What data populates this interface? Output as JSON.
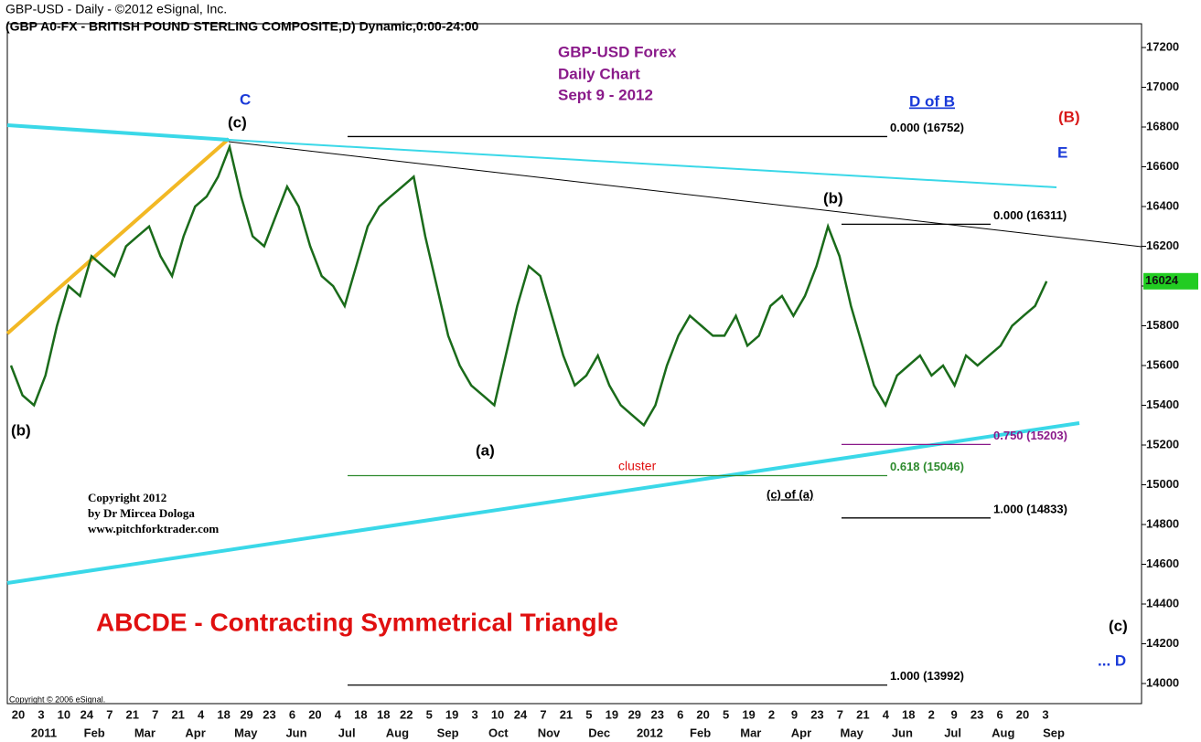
{
  "chart_data": {
    "type": "line",
    "header_line1": "GBP-USD -  Daily - ©2012 eSignal, Inc.",
    "header_line2": "(GBP A0-FX - BRITISH POUND STERLING COMPOSITE,D) Dynamic,0:00-24:00",
    "title_lines": [
      "GBP-USD Forex",
      "Daily Chart",
      "Sept 9 - 2012"
    ],
    "subtitle": "ABCDE -  Contracting Symmetrical Triangle",
    "copyright_lines": [
      "Copyright 2012",
      "by Dr Mircea Dologa",
      "www.pitchforktrader.com"
    ],
    "esignal_copyright": "Copyright © 2006 eSignal.",
    "wave_labels": [
      "C",
      "(c)",
      "(b)",
      "(a)",
      "(b)",
      "D of B",
      "(B)",
      "E",
      "(c) of (a)",
      "(c)",
      "... D"
    ],
    "annotation": "cluster",
    "levels": [
      {
        "label": "0.000 (16752)",
        "value": 16752,
        "color": "#000000"
      },
      {
        "label": "0.000 (16311)",
        "value": 16311,
        "color": "#000000"
      },
      {
        "label": "0.750 (15203)",
        "value": 15203,
        "color": "#8a1a8a"
      },
      {
        "label": "0.618 (15046)",
        "value": 15046,
        "color": "#2e8b2e"
      },
      {
        "label": "1.000 (14833)",
        "value": 14833,
        "color": "#000000"
      },
      {
        "label": "1.000 (13992)",
        "value": 13992,
        "color": "#000000"
      }
    ],
    "last_price": 16024,
    "series": [
      {
        "name": "GBP-USD",
        "color": "#1a6b1a",
        "values": [
          15600,
          15450,
          15400,
          15550,
          15800,
          16000,
          15950,
          16150,
          16100,
          16050,
          16200,
          16250,
          16300,
          16150,
          16050,
          16250,
          16400,
          16450,
          16550,
          16700,
          16450,
          16250,
          16200,
          16350,
          16500,
          16400,
          16200,
          16050,
          16000,
          15900,
          16100,
          16300,
          16400,
          16450,
          16500,
          16550,
          16250,
          16000,
          15750,
          15600,
          15500,
          15450,
          15400,
          15650,
          15900,
          16100,
          16050,
          15850,
          15650,
          15500,
          15550,
          15650,
          15500,
          15400,
          15350,
          15300,
          15400,
          15600,
          15750,
          15850,
          15800,
          15750,
          15750,
          15850,
          15700,
          15750,
          15900,
          15950,
          15850,
          15950,
          16100,
          16300,
          16150,
          15900,
          15700,
          15500,
          15400,
          15550,
          15600,
          15650,
          15550,
          15600,
          15500,
          15650,
          15600,
          15650,
          15700,
          15800,
          15850,
          15900,
          16024
        ]
      }
    ],
    "day_labels": [
      "20",
      "3",
      "10",
      "24",
      "7",
      "21",
      "7",
      "21",
      "4",
      "18",
      "29",
      "23",
      "6",
      "20",
      "4",
      "18",
      "18",
      "22",
      "5",
      "19",
      "3",
      "10",
      "24",
      "7",
      "21",
      "5",
      "19",
      "29",
      "23",
      "6",
      "20",
      "5",
      "19",
      "2",
      "9",
      "23",
      "7",
      "21",
      "4",
      "18",
      "2",
      "9",
      "23",
      "6",
      "20",
      "3"
    ],
    "month_labels": [
      "2011",
      "Feb",
      "Mar",
      "Apr",
      "May",
      "Jun",
      "Jul",
      "Aug",
      "Sep",
      "Oct",
      "Nov",
      "Dec",
      "2012",
      "Feb",
      "Mar",
      "Apr",
      "May",
      "Jun",
      "Jul",
      "Aug",
      "Sep"
    ],
    "ylim": [
      14000,
      17200
    ],
    "yticks": [
      14000,
      14200,
      14400,
      14600,
      14800,
      15000,
      15200,
      15400,
      15600,
      15800,
      16000,
      16200,
      16400,
      16600,
      16800,
      17000,
      17200
    ]
  }
}
